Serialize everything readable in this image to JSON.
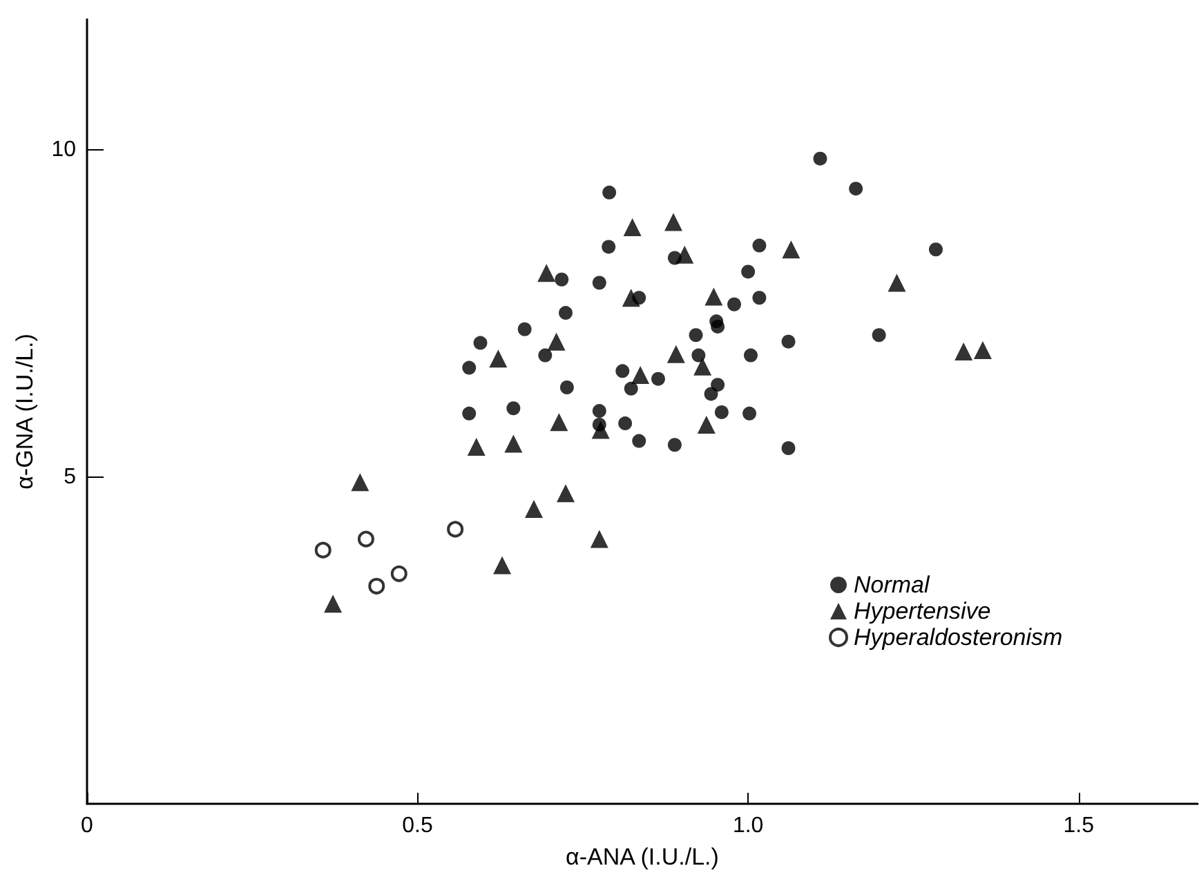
{
  "chart_data": {
    "type": "scatter",
    "xlabel": "α-ANA (I.U./L.)",
    "ylabel": "α-GNA (I.U./L.)",
    "xlim": [
      0,
      1.68
    ],
    "xticks": [
      0,
      0.5,
      {
        "value": 1,
        "label": "1.0"
      },
      1.5
    ],
    "ylim": [
      0,
      12
    ],
    "yticks": [
      5,
      10
    ],
    "grid": false,
    "legend": "right",
    "series": [
      {
        "name": "Normal",
        "color": "#000000",
        "marker": "circle",
        "x": [
          0.79,
          0.789,
          1.017,
          0.889,
          1.0,
          0.718,
          0.775,
          0.835,
          1.017,
          0.979,
          0.952,
          0.954,
          0.724,
          0.662,
          0.921,
          0.595,
          1.061,
          0.578,
          0.693,
          0.925,
          1.004,
          0.81,
          0.823,
          0.864,
          0.726,
          0.954,
          0.944,
          0.578,
          0.645,
          0.775,
          0.775,
          0.814,
          0.96,
          1.002,
          0.835,
          0.889,
          1.061,
          1.109,
          1.163,
          1.284,
          1.198
        ],
        "values": [
          9.35,
          8.52,
          8.54,
          8.35,
          8.14,
          8.02,
          7.97,
          7.74,
          7.74,
          7.64,
          7.38,
          7.3,
          7.51,
          7.26,
          7.17,
          7.05,
          7.07,
          6.67,
          6.86,
          6.86,
          6.86,
          6.62,
          6.35,
          6.5,
          6.37,
          6.41,
          6.27,
          5.97,
          6.05,
          6.01,
          5.8,
          5.82,
          5.99,
          5.97,
          5.55,
          5.49,
          5.44,
          9.87,
          9.41,
          8.48,
          7.17
        ]
      },
      {
        "name": "Hypertensive",
        "color": "#000000",
        "marker": "triangle",
        "x": [
          0.825,
          0.887,
          0.904,
          0.695,
          1.065,
          0.823,
          0.948,
          0.71,
          0.622,
          0.891,
          0.837,
          0.931,
          0.714,
          0.777,
          0.937,
          0.589,
          0.645,
          0.724,
          0.676,
          0.775,
          0.628,
          1.225,
          1.326,
          1.355,
          0.413,
          0.372
        ],
        "values": [
          8.82,
          8.9,
          8.4,
          8.12,
          8.48,
          7.74,
          7.76,
          7.07,
          6.81,
          6.88,
          6.56,
          6.69,
          5.84,
          5.72,
          5.8,
          5.46,
          5.51,
          4.75,
          4.51,
          4.05,
          3.65,
          7.97,
          6.92,
          6.94,
          4.92,
          3.06
        ]
      },
      {
        "name": "Hyperaldosteronism",
        "color": "#000000",
        "marker": "emptyCircle",
        "x": [
          0.357,
          0.422,
          0.438,
          0.472,
          0.557
        ],
        "values": [
          3.88,
          4.05,
          3.33,
          3.52,
          4.2
        ]
      }
    ]
  }
}
